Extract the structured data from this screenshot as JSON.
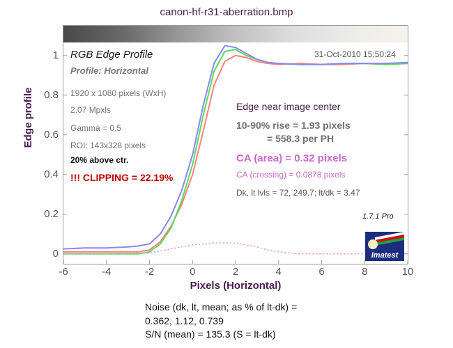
{
  "file_title": "canon-hf-r31-aberration.bmp",
  "chart_heading": "RGB Edge Profile",
  "profile_label": "Profile: Horizontal",
  "timestamp": "31-Oct-2010 15:50:24",
  "info_lines": [
    "1920 x 1080 pixels (WxH)",
    "2.07 Mpxls",
    "Gamma = 0.5",
    "ROI: 143x328 pixels"
  ],
  "roi_note": "20% above ctr.",
  "clipping": "!!! CLIPPING =  22.19%",
  "edge_heading": "Edge near image center",
  "rise": "10-90% rise = 1.93 pixels",
  "per_ph": "= 558.3 per PH",
  "ca_area": "CA (area) = 0.32 pixels",
  "ca_crossing": "CA (crossing) = 0.0878 pixels",
  "dk_lt": "Dk, lt lvls = 72, 249.7;  lt/dk = 3.47",
  "version": "1.7.1  Pro",
  "logo_text": "Imatest",
  "noise_lines": [
    "Noise (dk, lt, mean; as % of lt-dk) =",
    "0.362,  1.12,  0.739",
    "S/N (mean) = 135.3  (S = lt-dk)"
  ],
  "colors": {
    "red": "#ff7f7f",
    "green": "#55dd55",
    "blue": "#8888ee",
    "ca": "#ee88ee",
    "title": "#4a1a4e"
  },
  "chart_data": {
    "type": "line",
    "xlabel": "Pixels (Horizontal)",
    "ylabel": "Edge profile",
    "xlim": [
      -6,
      10
    ],
    "ylim": [
      -0.05,
      1.15
    ],
    "xticks": [
      -6,
      -4,
      -2,
      0,
      2,
      4,
      6,
      8,
      10
    ],
    "yticks": [
      0,
      0.2,
      0.4,
      0.6,
      0.8,
      1
    ],
    "grid": false,
    "series": [
      {
        "color": "red",
        "x": [
          -6,
          -5,
          -4,
          -3,
          -2.5,
          -2,
          -1.5,
          -1,
          -0.5,
          0,
          0.5,
          1,
          1.5,
          2,
          2.5,
          3,
          3.5,
          4,
          5,
          6,
          7,
          8,
          9,
          10
        ],
        "y": [
          0.01,
          0.01,
          0.01,
          0.01,
          0.01,
          0.02,
          0.06,
          0.14,
          0.25,
          0.4,
          0.62,
          0.85,
          0.97,
          1.0,
          0.99,
          0.97,
          0.96,
          0.955,
          0.96,
          0.955,
          0.955,
          0.96,
          0.955,
          0.96
        ]
      },
      {
        "color": "green",
        "x": [
          -6,
          -5,
          -4,
          -3,
          -2.5,
          -2,
          -1.5,
          -1,
          -0.5,
          0,
          0.5,
          1,
          1.5,
          2,
          2.5,
          3,
          3.5,
          4,
          5,
          6,
          7,
          8,
          9,
          10
        ],
        "y": [
          0.0,
          0.0,
          0.0,
          0.0,
          0.0,
          0.01,
          0.05,
          0.13,
          0.27,
          0.45,
          0.7,
          0.92,
          1.02,
          1.03,
          1.0,
          0.98,
          0.965,
          0.96,
          0.955,
          0.955,
          0.96,
          0.96,
          0.955,
          0.96
        ]
      },
      {
        "color": "blue",
        "x": [
          -6,
          -5,
          -4,
          -3,
          -2.5,
          -2,
          -1.5,
          -1,
          -0.5,
          0,
          0.5,
          1,
          1.5,
          2,
          2.5,
          3,
          3.5,
          4,
          5,
          6,
          7,
          8,
          9,
          10
        ],
        "y": [
          0.025,
          0.03,
          0.03,
          0.035,
          0.04,
          0.05,
          0.1,
          0.19,
          0.32,
          0.5,
          0.75,
          0.96,
          1.05,
          1.04,
          1.01,
          0.98,
          0.965,
          0.96,
          0.955,
          0.955,
          0.96,
          0.96,
          0.96,
          0.965
        ]
      },
      {
        "color": "ca",
        "x": [
          -6,
          -4,
          -2,
          -1.5,
          -1,
          -0.5,
          0,
          0.5,
          1,
          1.5,
          2,
          2.5,
          3,
          3.5,
          4,
          4.5,
          5,
          6,
          8,
          10
        ],
        "y": [
          0,
          0,
          0.005,
          0.015,
          0.025,
          0.035,
          0.045,
          0.05,
          0.055,
          0.055,
          0.055,
          0.045,
          0.035,
          0.02,
          0.01,
          0.005,
          0,
          0,
          0,
          0
        ]
      }
    ]
  }
}
